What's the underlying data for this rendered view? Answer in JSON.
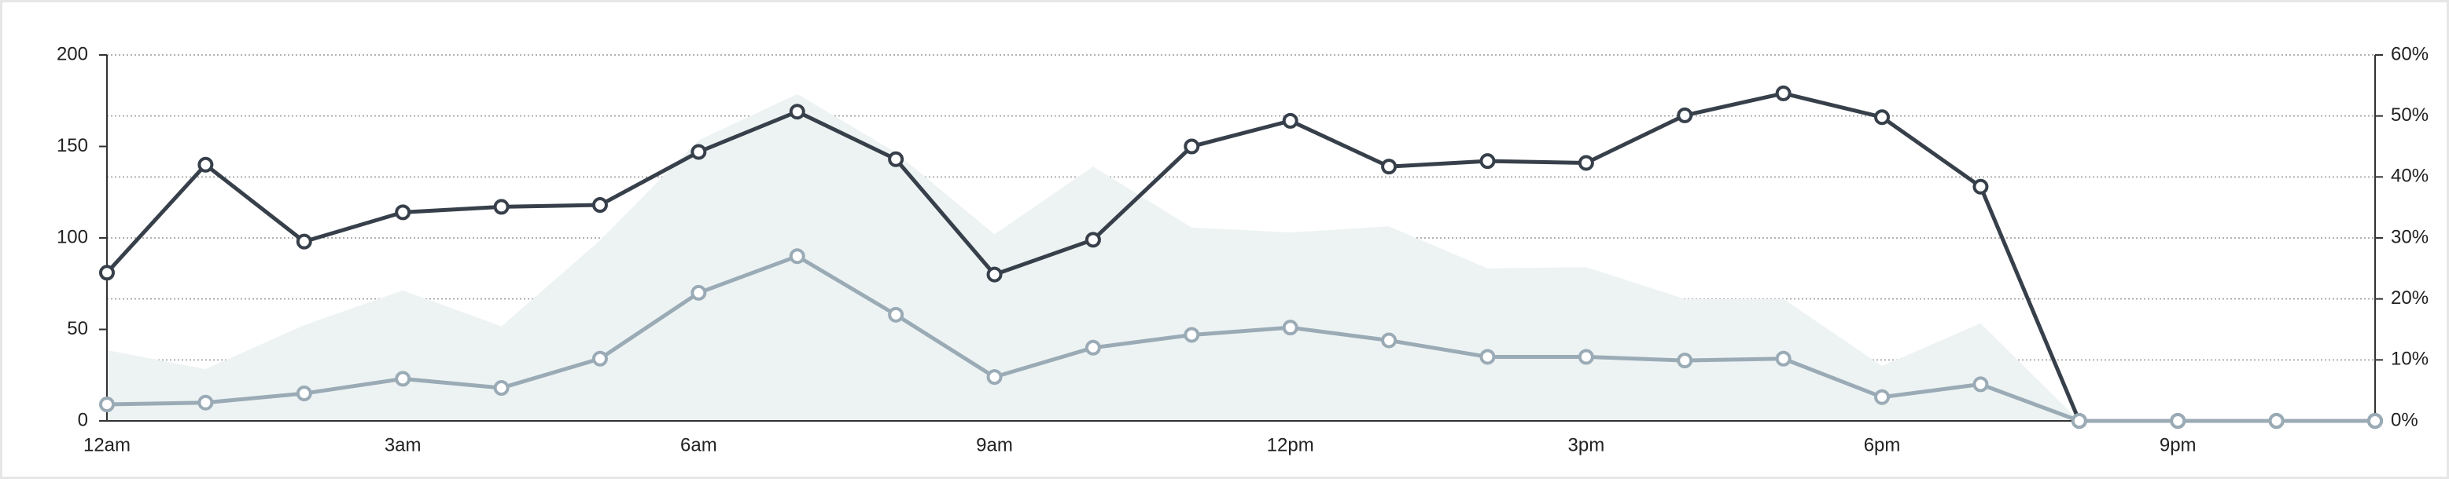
{
  "chart_data": {
    "type": "line",
    "categories": [
      "12am",
      null,
      null,
      "3am",
      null,
      null,
      "6am",
      null,
      null,
      "9am",
      null,
      null,
      "12pm",
      null,
      null,
      "3pm",
      null,
      null,
      "6pm",
      null,
      null,
      "9pm",
      null,
      null
    ],
    "series": [
      {
        "type": "area",
        "axis": "y2",
        "color": "#edf3f3",
        "values": [
          11.6,
          8.5,
          15.7,
          21.4,
          15.5,
          29.6,
          46,
          53.6,
          44,
          30.6,
          41.7,
          31.7,
          30.9,
          31.9,
          25,
          25.2,
          20,
          20,
          9,
          16,
          0,
          0,
          0,
          0
        ]
      },
      {
        "type": "line",
        "color": "#37404a",
        "marker": true,
        "values": [
          81,
          140,
          98,
          114,
          117,
          118,
          147,
          169,
          143,
          80,
          99,
          150,
          164,
          139,
          142,
          141,
          167,
          179,
          166,
          128,
          0,
          0,
          0,
          0
        ]
      },
      {
        "type": "line",
        "color": "#9aabb6",
        "marker": true,
        "values": [
          9,
          10,
          15,
          23,
          18,
          34,
          70,
          90,
          58,
          24,
          40,
          47,
          51,
          44,
          35,
          35,
          33,
          34,
          13,
          20,
          0,
          0,
          0,
          0
        ]
      }
    ],
    "ylim": [
      0,
      200
    ],
    "yticks": [
      0,
      50,
      100,
      150,
      200
    ],
    "y2lim": [
      0,
      60
    ],
    "y2ticks": [
      {
        "value": 0,
        "label": "0%"
      },
      {
        "value": 10,
        "label": "10%"
      },
      {
        "value": 20,
        "label": "20%"
      },
      {
        "value": 30,
        "label": "30%"
      },
      {
        "value": 40,
        "label": "40%"
      },
      {
        "value": 50,
        "label": "50%"
      },
      {
        "value": 60,
        "label": "60%"
      }
    ],
    "grid": true
  }
}
